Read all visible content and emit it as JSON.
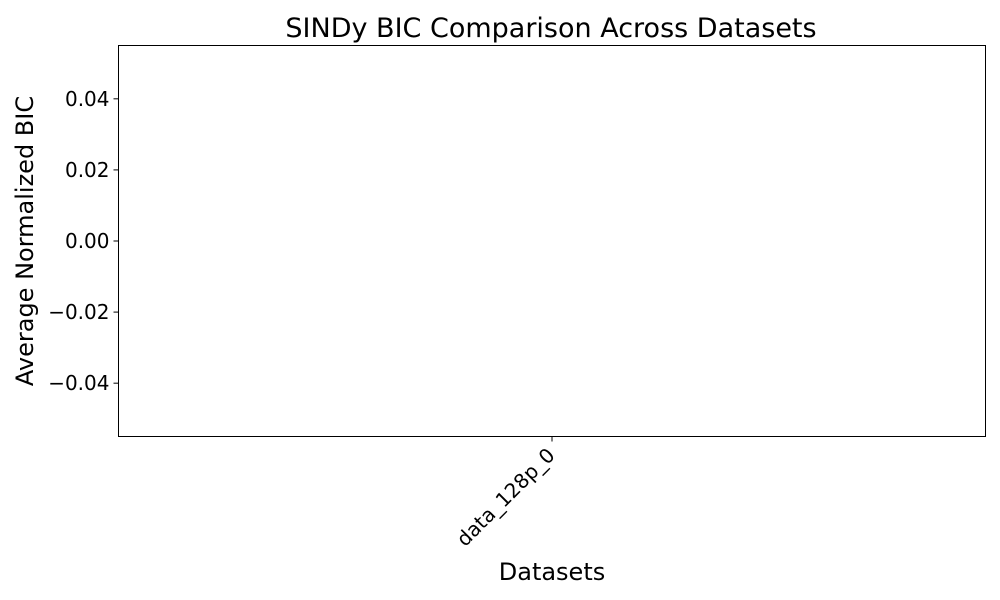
{
  "chart_data": {
    "type": "bar",
    "title": "SINDy BIC Comparison Across Datasets",
    "xlabel": "Datasets",
    "ylabel": "Average Normalized BIC",
    "categories": [
      "data_128p_0"
    ],
    "values": [
      0
    ],
    "ylim": [
      -0.055,
      0.055
    ],
    "y_ticks": [
      0.04,
      0.02,
      0.0,
      -0.02,
      -0.04
    ],
    "y_tick_labels": [
      "0.04",
      "0.02",
      "0.00",
      "−0.02",
      "−0.04"
    ],
    "grid": false,
    "legend": "none",
    "x_tick_rotation": "45-degrees"
  }
}
